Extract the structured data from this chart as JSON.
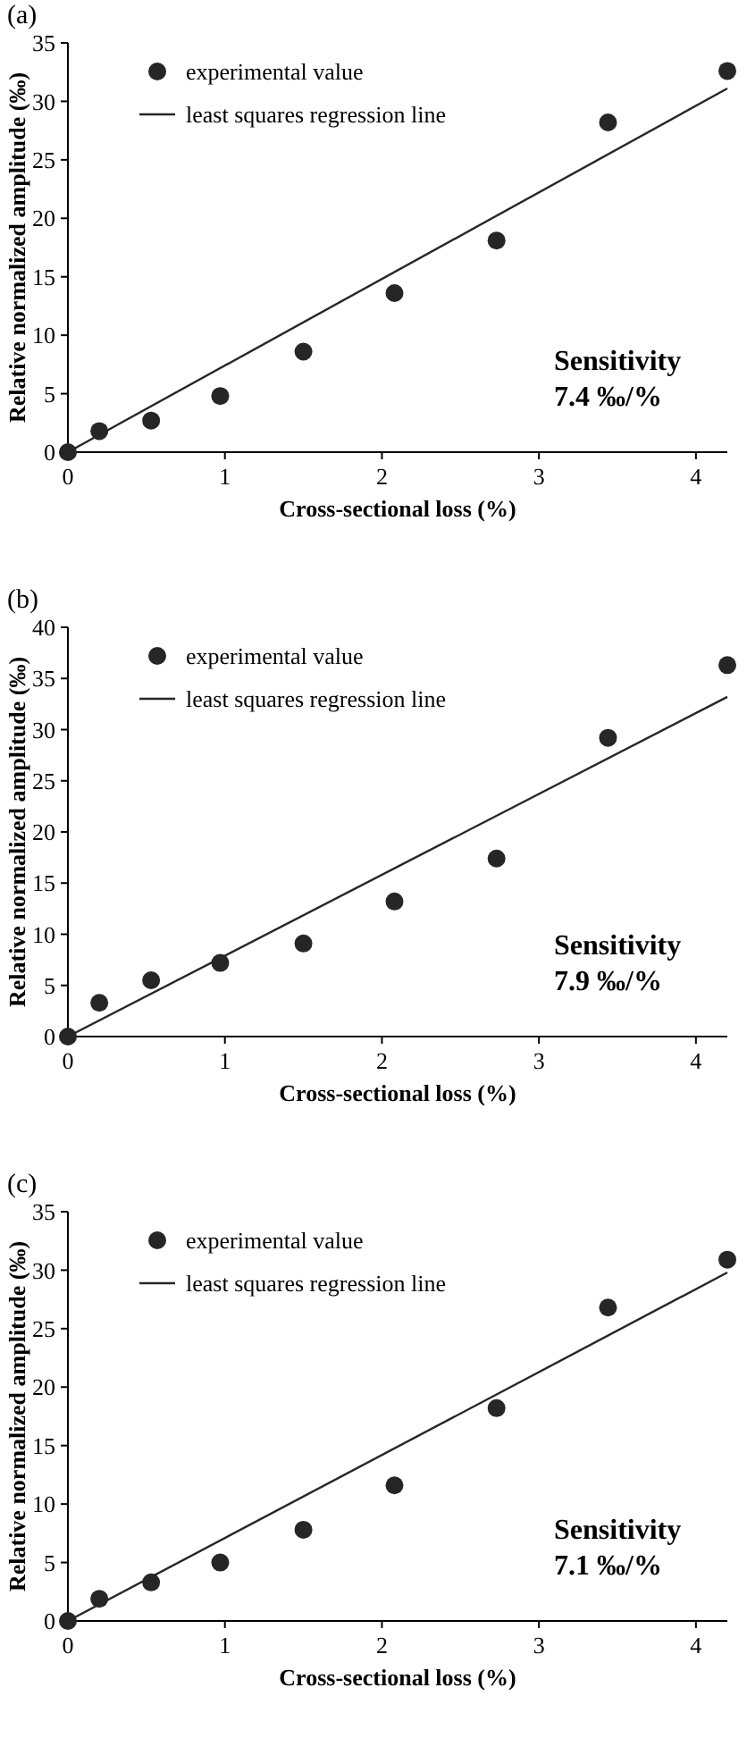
{
  "chart_data": [
    {
      "type": "scatter",
      "title": "(a)",
      "xlabel": "Cross-sectional loss (%)",
      "ylabel": "Relative normalized amplitude (‰)",
      "xlim": [
        0,
        4.2
      ],
      "xticks": [
        0,
        1,
        2,
        3,
        4
      ],
      "ylim": [
        0,
        35
      ],
      "yticks": [
        0,
        5,
        10,
        15,
        20,
        25,
        30,
        35
      ],
      "grid": false,
      "legend": "top left",
      "annotations": [
        "Sensitivity",
        "7.4 ‰/%"
      ],
      "series": [
        {
          "name": "experimental value",
          "color": "#262626",
          "marker": "circle",
          "x": [
            0,
            0.2,
            0.53,
            0.97,
            1.5,
            2.08,
            2.73,
            3.44,
            4.2
          ],
          "values": [
            0,
            1.8,
            2.7,
            4.8,
            8.6,
            13.6,
            18.1,
            28.2,
            32.6
          ]
        },
        {
          "name": "least squares regression line",
          "type": "line",
          "color": "#262626",
          "line_style": "solid",
          "x": [
            0,
            4.2
          ],
          "values": [
            0,
            31.1
          ]
        }
      ]
    },
    {
      "type": "scatter",
      "title": "(b)",
      "xlabel": "Cross-sectional loss (%)",
      "ylabel": "Relative normalized amplitude (‰)",
      "xlim": [
        0,
        4.2
      ],
      "xticks": [
        0,
        1,
        2,
        3,
        4
      ],
      "ylim": [
        0,
        40
      ],
      "yticks": [
        0,
        5,
        10,
        15,
        20,
        25,
        30,
        35,
        40
      ],
      "grid": false,
      "legend": "top left",
      "annotations": [
        "Sensitivity",
        "7.9 ‰/%"
      ],
      "series": [
        {
          "name": "experimental value",
          "color": "#262626",
          "marker": "circle",
          "x": [
            0,
            0.2,
            0.53,
            0.97,
            1.5,
            2.08,
            2.73,
            3.44,
            4.2
          ],
          "values": [
            0,
            3.3,
            5.5,
            7.2,
            9.1,
            13.2,
            17.4,
            29.2,
            36.3
          ]
        },
        {
          "name": "least squares regression line",
          "type": "line",
          "color": "#262626",
          "line_style": "solid",
          "x": [
            0,
            4.2
          ],
          "values": [
            0,
            33.2
          ]
        }
      ]
    },
    {
      "type": "scatter",
      "title": "(c)",
      "xlabel": "Cross-sectional loss (%)",
      "ylabel": "Relative normalized amplitude (‰)",
      "xlim": [
        0,
        4.2
      ],
      "xticks": [
        0,
        1,
        2,
        3,
        4
      ],
      "ylim": [
        0,
        35
      ],
      "yticks": [
        0,
        5,
        10,
        15,
        20,
        25,
        30,
        35
      ],
      "grid": false,
      "legend": "top left",
      "annotations": [
        "Sensitivity",
        "7.1 ‰/%"
      ],
      "series": [
        {
          "name": "experimental value",
          "color": "#262626",
          "marker": "circle",
          "x": [
            0,
            0.2,
            0.53,
            0.97,
            1.5,
            2.08,
            2.73,
            3.44,
            4.2
          ],
          "values": [
            0,
            1.9,
            3.3,
            5.0,
            7.8,
            11.6,
            18.2,
            26.8,
            30.9
          ]
        },
        {
          "name": "least squares regression line",
          "type": "line",
          "color": "#262626",
          "line_style": "solid",
          "x": [
            0,
            4.2
          ],
          "values": [
            0,
            29.8
          ]
        }
      ]
    }
  ]
}
